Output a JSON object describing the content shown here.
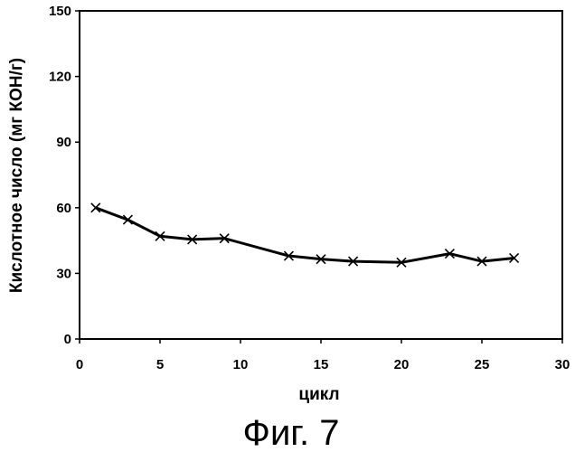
{
  "figure_caption": "Фиг. 7",
  "chart_data": {
    "type": "line",
    "title": "",
    "xlabel": "цикл",
    "ylabel": "Кислотное число (мг КОН/г)",
    "xlim": [
      0,
      30
    ],
    "ylim": [
      0,
      150
    ],
    "x_ticks": [
      0,
      5,
      10,
      15,
      20,
      25,
      30
    ],
    "y_ticks": [
      0,
      30,
      60,
      90,
      120,
      150
    ],
    "grid": false,
    "legend": "none",
    "marker": "x",
    "line_color": "#000000",
    "series": [
      {
        "x": [
          1,
          3,
          5,
          7,
          9,
          13,
          15,
          17,
          20,
          23,
          25,
          27
        ],
        "y": [
          60,
          54.5,
          47,
          45.5,
          46,
          38,
          36.5,
          35.5,
          35,
          39,
          35.5,
          37
        ]
      }
    ]
  }
}
